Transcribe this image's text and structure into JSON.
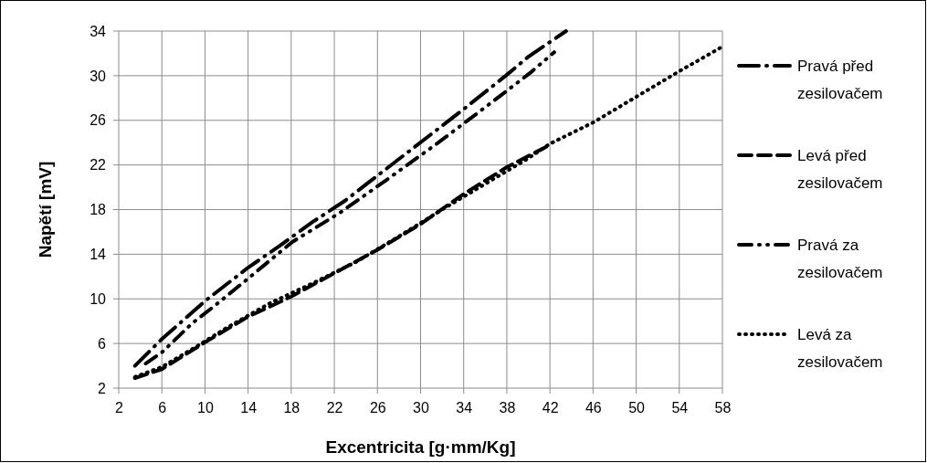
{
  "chart_data": {
    "type": "line",
    "xlabel": "Excentricita [g·mm/Kg]",
    "ylabel": "Napětí [mV]",
    "xlim": [
      2,
      58
    ],
    "xticks": [
      2,
      6,
      10,
      14,
      18,
      22,
      26,
      30,
      34,
      38,
      42,
      46,
      50,
      54,
      58
    ],
    "ylim": [
      2,
      34
    ],
    "yticks": [
      2,
      6,
      10,
      14,
      18,
      22,
      26,
      30,
      34
    ],
    "grid": true,
    "legend": "right",
    "marker": "none",
    "series": [
      {
        "name": "Pravá před zesilovačem",
        "color": "#000000",
        "line_style": "dashdot",
        "x": [
          3.5,
          6,
          10,
          14,
          17,
          20,
          23,
          25,
          29.3,
          33.6,
          37.9,
          40,
          43.5
        ],
        "values": [
          4.0,
          6.4,
          9.8,
          12.8,
          14.8,
          16.9,
          18.8,
          20.3,
          23.5,
          26.7,
          30.0,
          31.7,
          34
        ]
      },
      {
        "name": "Levá před zesilovačem",
        "color": "#000000",
        "line_style": "dashed",
        "x": [
          3.5,
          6,
          10,
          14,
          18,
          22,
          26,
          30,
          34,
          38,
          42
        ],
        "values": [
          2.9,
          3.7,
          6.1,
          8.4,
          10.2,
          12.3,
          14.4,
          16.7,
          19.4,
          21.8,
          23.8
        ]
      },
      {
        "name": "Pravá za zesilovačem",
        "color": "#000000",
        "line_style": "dashdotdot",
        "x": [
          4.5,
          6,
          8.8,
          10.8,
          14.1,
          18.1,
          22.5,
          26.9,
          31.5,
          35.9,
          40.1,
          42.4
        ],
        "values": [
          4.2,
          5.2,
          7.8,
          9.3,
          11.9,
          15.1,
          17.7,
          20.7,
          23.9,
          27.1,
          30.2,
          32.1
        ]
      },
      {
        "name": "Levá za zesilovačem",
        "color": "#000000",
        "line_style": "dotted",
        "x": [
          3.5,
          6,
          9,
          12,
          16,
          20,
          24,
          28,
          32,
          36,
          40,
          42,
          46,
          50,
          54,
          58
        ],
        "values": [
          3.0,
          3.9,
          5.6,
          7.4,
          9.6,
          11.4,
          13.3,
          15.6,
          18.0,
          20.3,
          22.6,
          23.9,
          25.8,
          28.1,
          30.4,
          32.6
        ]
      }
    ]
  }
}
